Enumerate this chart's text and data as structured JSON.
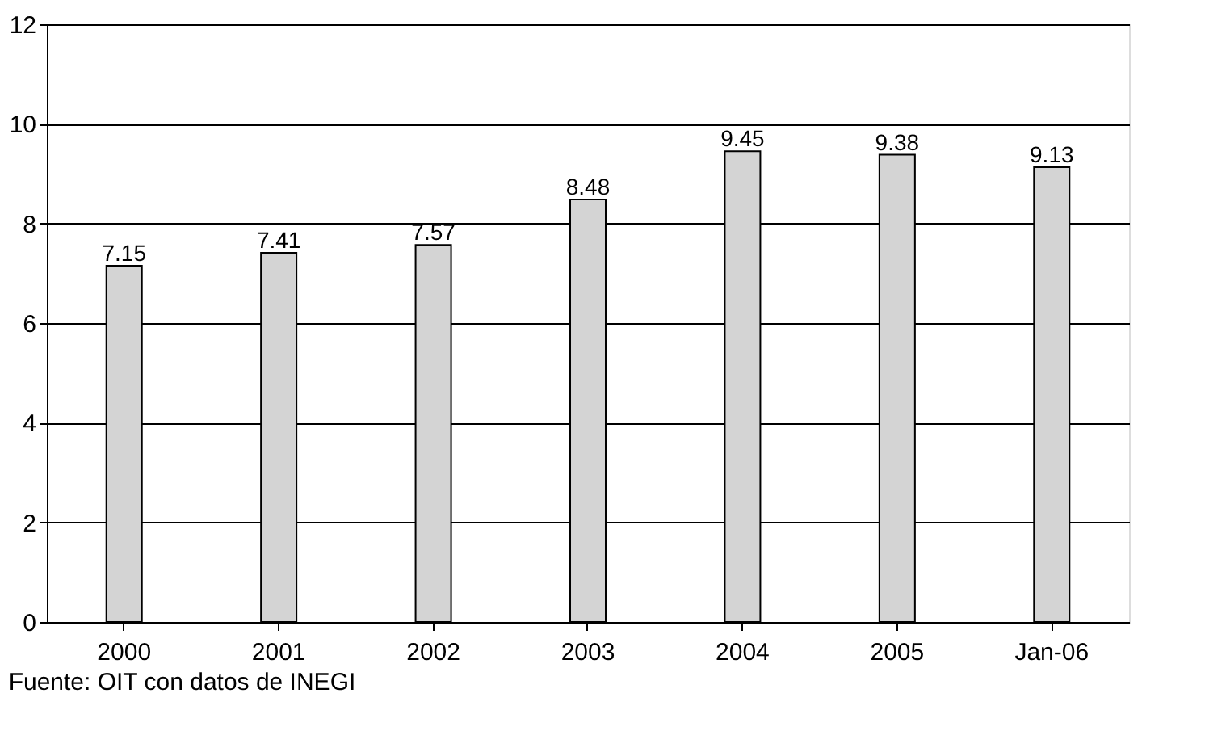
{
  "chart_data": {
    "type": "bar",
    "categories": [
      "2000",
      "2001",
      "2002",
      "2003",
      "2004",
      "2005",
      "Jan-06"
    ],
    "values": [
      7.15,
      7.41,
      7.57,
      8.48,
      9.45,
      9.38,
      9.13
    ],
    "color": "#d4d4d4",
    "ylim": [
      0,
      12
    ],
    "yticks": [
      0,
      2,
      4,
      6,
      8,
      10,
      12
    ],
    "grid": "y",
    "data_labels": true,
    "annotations": [
      "Fuente: OIT con datos de INEGI"
    ]
  }
}
